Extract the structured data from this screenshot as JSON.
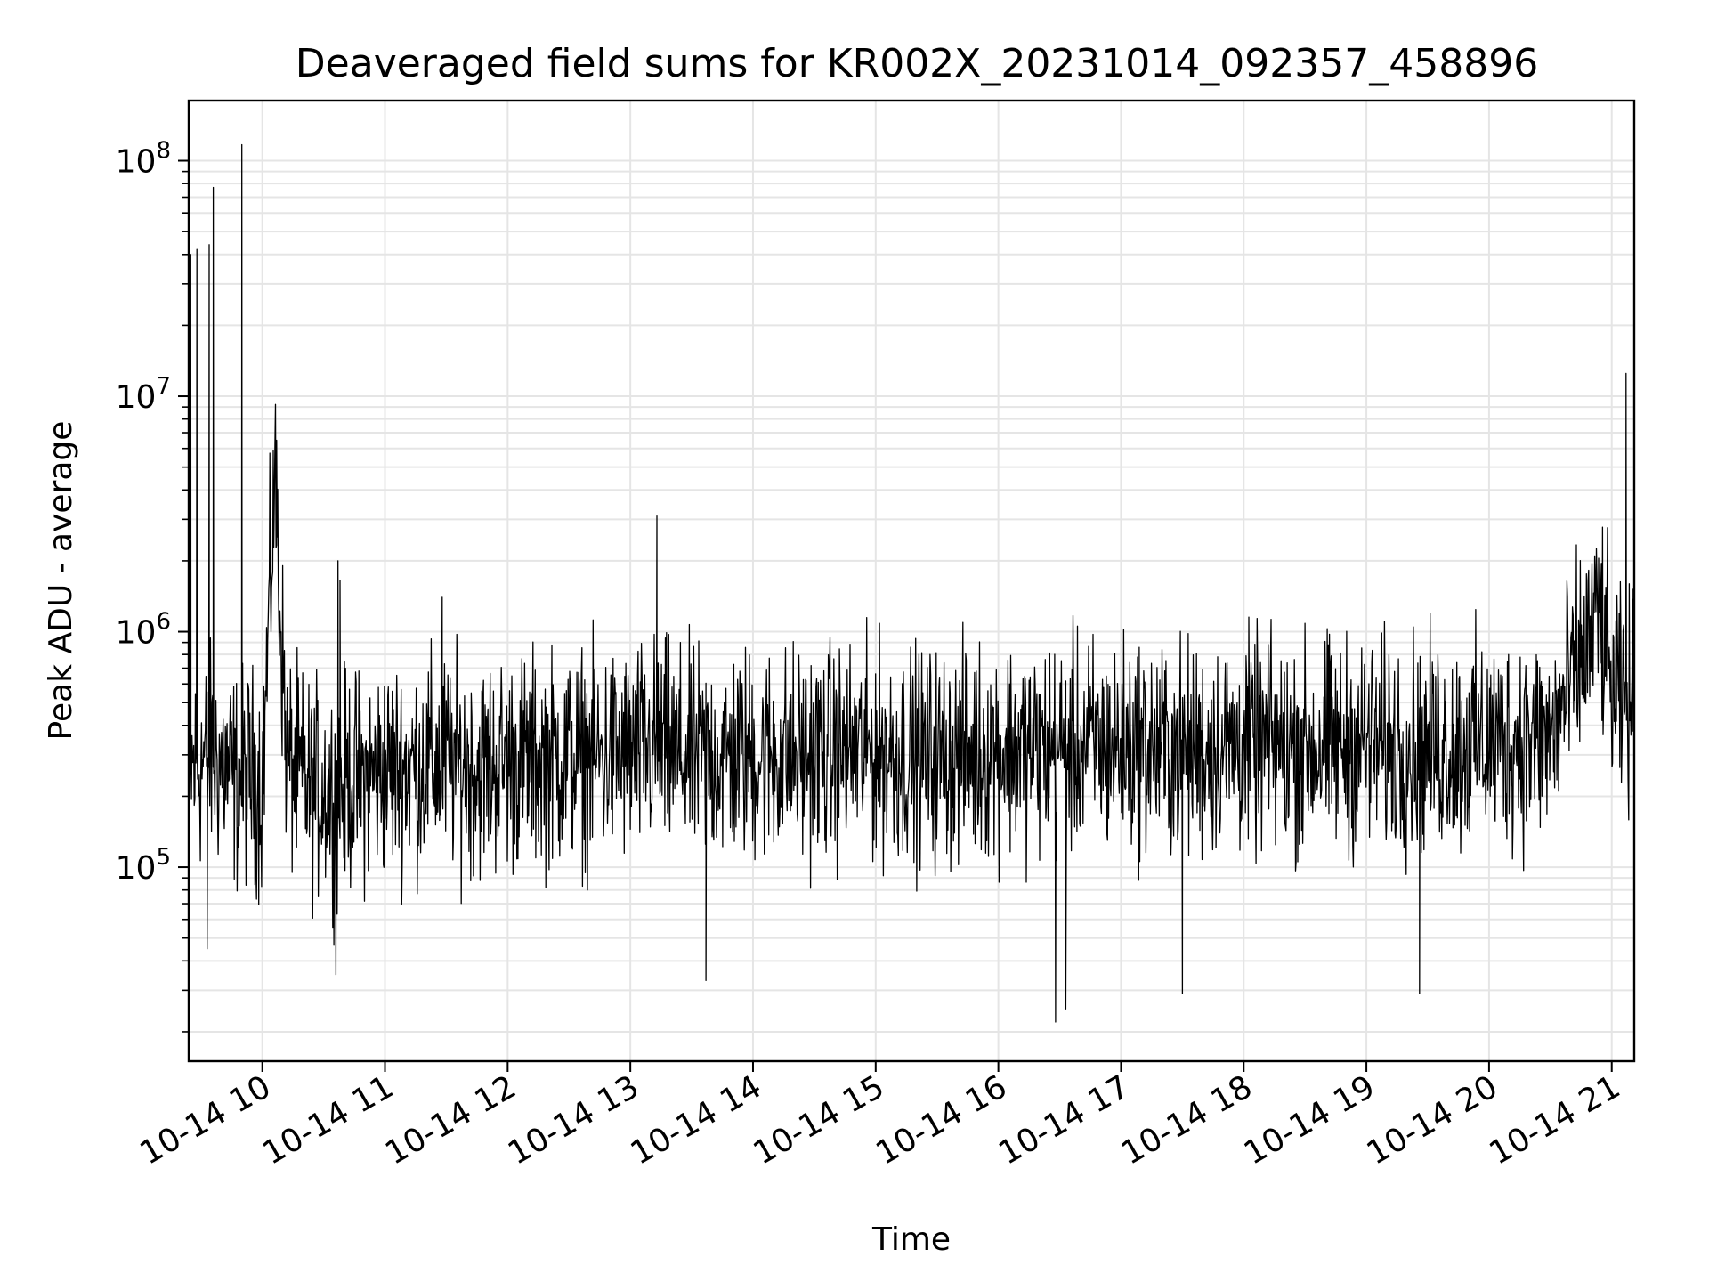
{
  "chart_data": {
    "type": "line",
    "title": "Deaveraged field sums for KR002X_20231014_092357_458896",
    "xlabel": "Time",
    "ylabel": "Peak ADU - average",
    "y_scale": "log",
    "ylim": [
      15000,
      180000000
    ],
    "xlim": [
      "2023-10-14 09:24",
      "2023-10-14 21:11"
    ],
    "grid": true,
    "grid_color": "#e5e5e5",
    "line_color": "#000000",
    "x_tick_labels": [
      "10-14 10",
      "10-14 11",
      "10-14 12",
      "10-14 13",
      "10-14 14",
      "10-14 15",
      "10-14 16",
      "10-14 17",
      "10-14 18",
      "10-14 19",
      "10-14 20",
      "10-14 21"
    ],
    "x_tick_times": [
      "2023-10-14 10:00",
      "2023-10-14 11:00",
      "2023-10-14 12:00",
      "2023-10-14 13:00",
      "2023-10-14 14:00",
      "2023-10-14 15:00",
      "2023-10-14 16:00",
      "2023-10-14 17:00",
      "2023-10-14 18:00",
      "2023-10-14 19:00",
      "2023-10-14 20:00",
      "2023-10-14 21:00"
    ],
    "y_ticks": [
      {
        "value": 100000,
        "base": "10",
        "exp": "5"
      },
      {
        "value": 1000000,
        "base": "10",
        "exp": "6"
      },
      {
        "value": 10000000,
        "base": "10",
        "exp": "7"
      },
      {
        "value": 100000000,
        "base": "10",
        "exp": "8"
      }
    ],
    "series": [
      {
        "x": [
          "2023-10-14 09:24",
          "2023-10-14 09:30",
          "2023-10-14 09:36",
          "2023-10-14 09:42",
          "2023-10-14 09:48",
          "2023-10-14 09:54",
          "2023-10-14 10:00",
          "2023-10-14 10:06",
          "2023-10-14 10:12",
          "2023-10-14 10:18",
          "2023-10-14 10:24",
          "2023-10-14 10:30",
          "2023-10-14 10:36",
          "2023-10-14 10:42",
          "2023-10-14 10:48",
          "2023-10-14 11:00",
          "2023-10-14 11:15",
          "2023-10-14 11:30",
          "2023-10-14 11:45",
          "2023-10-14 12:00",
          "2023-10-14 12:30",
          "2023-10-14 13:00",
          "2023-10-14 13:12",
          "2023-10-14 13:30",
          "2023-10-14 14:00",
          "2023-10-14 14:30",
          "2023-10-14 15:00",
          "2023-10-14 15:30",
          "2023-10-14 16:00",
          "2023-10-14 16:30",
          "2023-10-14 17:00",
          "2023-10-14 17:30",
          "2023-10-14 18:00",
          "2023-10-14 18:30",
          "2023-10-14 19:00",
          "2023-10-14 19:30",
          "2023-10-14 20:00",
          "2023-10-14 20:30",
          "2023-10-14 20:54",
          "2023-10-14 21:00",
          "2023-10-14 21:06",
          "2023-10-14 21:11"
        ],
        "y": [
          250000,
          280000,
          300000,
          260000,
          230000,
          250000,
          220000,
          4500000,
          280000,
          240000,
          210000,
          220000,
          200000,
          240000,
          230000,
          260000,
          270000,
          280000,
          260000,
          280000,
          290000,
          300000,
          320000,
          290000,
          300000,
          300000,
          310000,
          290000,
          320000,
          320000,
          330000,
          310000,
          330000,
          320000,
          330000,
          320000,
          340000,
          350000,
          1200000,
          550000,
          480000,
          520000
        ]
      }
    ],
    "spikes": [
      {
        "x": "2023-10-14 09:25",
        "y": 40000000
      },
      {
        "x": "2023-10-14 09:28",
        "y": 42000000
      },
      {
        "x": "2023-10-14 09:34",
        "y": 44000000
      },
      {
        "x": "2023-10-14 09:36",
        "y": 77000000
      },
      {
        "x": "2023-10-14 09:50",
        "y": 117000000
      },
      {
        "x": "2023-10-14 10:07",
        "y": 6500000
      },
      {
        "x": "2023-10-14 10:38",
        "y": 1650000
      },
      {
        "x": "2023-10-14 10:37",
        "y": 2000000
      },
      {
        "x": "2023-10-14 11:28",
        "y": 1400000
      },
      {
        "x": "2023-10-14 13:13",
        "y": 3100000
      },
      {
        "x": "2023-10-14 21:07",
        "y": 12500000
      }
    ],
    "dips": [
      {
        "x": "2023-10-14 09:33",
        "y": 45000
      },
      {
        "x": "2023-10-14 10:36",
        "y": 35000
      },
      {
        "x": "2023-10-14 13:37",
        "y": 33000
      },
      {
        "x": "2023-10-14 16:28",
        "y": 22000
      },
      {
        "x": "2023-10-14 16:33",
        "y": 25000
      },
      {
        "x": "2023-10-14 17:30",
        "y": 29000
      },
      {
        "x": "2023-10-14 19:26",
        "y": 29000
      }
    ]
  }
}
